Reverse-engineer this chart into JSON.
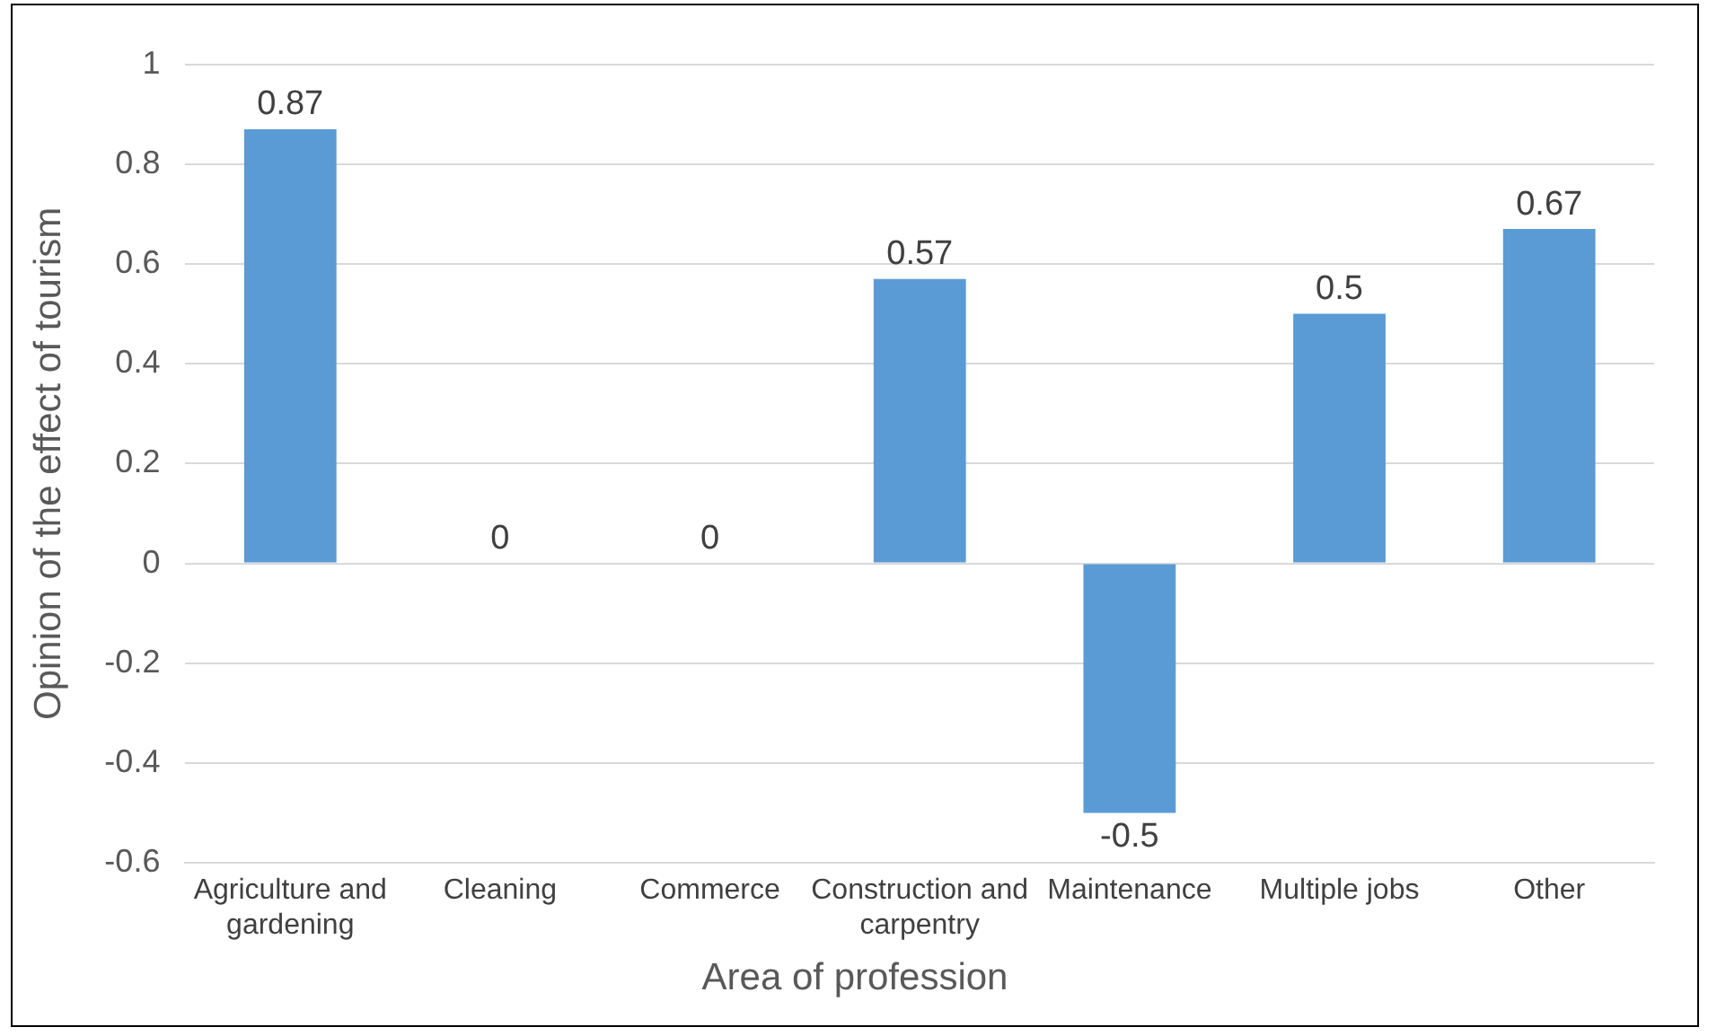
{
  "chart_data": {
    "type": "bar",
    "xlabel": "Area of profession",
    "ylabel": "Opinion of the effect of tourism",
    "categories": [
      "Agriculture and gardening",
      "Cleaning",
      "Commerce",
      "Construction and carpentry",
      "Maintenance",
      "Multiple jobs",
      "Other"
    ],
    "values": [
      0.87,
      0,
      0,
      0.57,
      -0.5,
      0.5,
      0.67
    ],
    "color": "#5b9bd5",
    "ylim": [
      -0.6,
      1
    ],
    "yticks": [
      -0.6,
      -0.4,
      -0.2,
      0,
      0.2,
      0.4,
      0.6,
      0.8,
      1
    ],
    "grid": "y",
    "data_labels": true
  }
}
